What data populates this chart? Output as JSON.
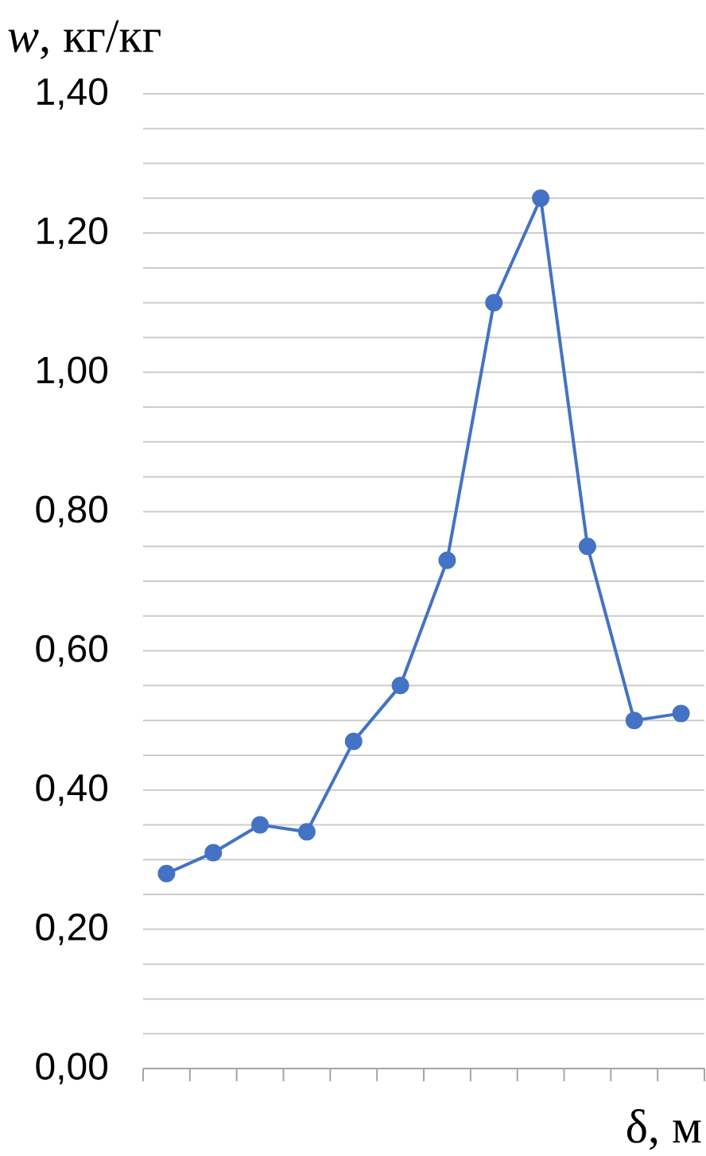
{
  "chart_data": {
    "type": "line",
    "xlabel": "δ, м",
    "ylabel": "*w*, кг/кг",
    "categories": [
      null,
      null,
      null,
      null,
      null,
      null,
      null,
      null,
      null,
      null,
      null,
      null
    ],
    "series": [
      {
        "color": "#4472c4",
        "values": [
          0.28,
          0.31,
          0.35,
          0.34,
          0.47,
          0.55,
          0.73,
          1.1,
          1.25,
          0.75,
          0.5,
          0.51
        ]
      }
    ],
    "ylim": [
      0,
      1.4
    ],
    "yticks": [
      {
        "value": 0,
        "label": "0,00"
      },
      {
        "value": 0.05,
        "label": null
      },
      {
        "value": 0.1,
        "label": null
      },
      {
        "value": 0.15,
        "label": null
      },
      {
        "value": 0.2,
        "label": "0,20"
      },
      {
        "value": 0.25,
        "label": null
      },
      {
        "value": 0.3,
        "label": null
      },
      {
        "value": 0.35,
        "label": null
      },
      {
        "value": 0.4,
        "label": "0,40"
      },
      {
        "value": 0.45,
        "label": null
      },
      {
        "value": 0.5,
        "label": null
      },
      {
        "value": 0.55,
        "label": null
      },
      {
        "value": 0.6,
        "label": "0,60"
      },
      {
        "value": 0.65,
        "label": null
      },
      {
        "value": 0.7,
        "label": null
      },
      {
        "value": 0.75,
        "label": null
      },
      {
        "value": 0.8,
        "label": "0,80"
      },
      {
        "value": 0.85,
        "label": null
      },
      {
        "value": 0.9,
        "label": null
      },
      {
        "value": 0.95,
        "label": null
      },
      {
        "value": 1.0,
        "label": "1,00"
      },
      {
        "value": 1.05,
        "label": null
      },
      {
        "value": 1.1,
        "label": null
      },
      {
        "value": 1.15,
        "label": null
      },
      {
        "value": 1.2,
        "label": "1,20"
      },
      {
        "value": 1.25,
        "label": null
      },
      {
        "value": 1.3,
        "label": null
      },
      {
        "value": 1.35,
        "label": null
      },
      {
        "value": 1.4,
        "label": "1,40"
      }
    ],
    "grid": "y",
    "marker": "circle",
    "line_style": "solid"
  }
}
